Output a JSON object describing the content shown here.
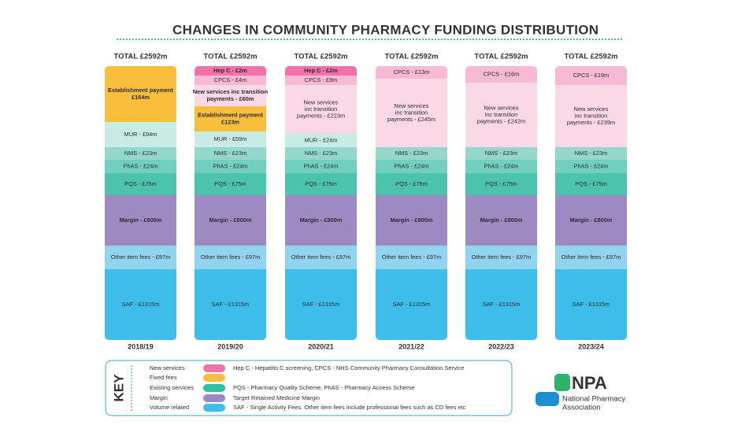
{
  "title": "CHANGES IN COMMUNITY PHARMACY FUNDING DISTRIBUTION",
  "columns": [
    {
      "total": "TOTAL £2592m",
      "year": "2018/19",
      "segments": [
        {
          "lines": [
            "Establishment payment",
            "£164m"
          ],
          "color": "#f9bf3c"
        },
        {
          "lines": [
            "MUR - £94m"
          ],
          "color": "#c8ebe3"
        },
        {
          "lines": [
            "NMS - £23m"
          ],
          "color": "#94d8ca"
        },
        {
          "lines": [
            "PhAS - £24m"
          ],
          "color": "#71cfbd"
        },
        {
          "lines": [
            "PQS - £75m"
          ],
          "color": "#4bc3ad"
        },
        {
          "lines": [
            "Margin - £800m"
          ],
          "color": "#9e8ac3"
        },
        {
          "lines": [
            "Other item fees - £97m"
          ],
          "color": "#90d4ef"
        },
        {
          "lines": [
            "SAF - £1315m"
          ],
          "color": "#3dbeea"
        }
      ]
    },
    {
      "total": "TOTAL £2592m",
      "year": "2019/20",
      "segments": [
        {
          "lines": [
            "Hep C - £2m"
          ],
          "color": "#f172a9"
        },
        {
          "lines": [
            "CPCS - £4m"
          ],
          "color": "#f7b9d3"
        },
        {
          "lines": [
            "New services inc transition",
            "payments - £60m"
          ],
          "color": "#fbd8e6"
        },
        {
          "lines": [
            "Establishment payment",
            "£123m"
          ],
          "color": "#f9bf3c"
        },
        {
          "lines": [
            "MUR - £59m"
          ],
          "color": "#c8ebe3"
        },
        {
          "lines": [
            "NMS - £23m"
          ],
          "color": "#94d8ca"
        },
        {
          "lines": [
            "PhAS - £24m"
          ],
          "color": "#71cfbd"
        },
        {
          "lines": [
            "PQS - £75m"
          ],
          "color": "#4bc3ad"
        },
        {
          "lines": [
            "Margin - £800m"
          ],
          "color": "#9e8ac3"
        },
        {
          "lines": [
            "Other item fees - £97m"
          ],
          "color": "#90d4ef"
        },
        {
          "lines": [
            "SAF - £1315m"
          ],
          "color": "#3dbeea"
        }
      ]
    },
    {
      "total": "TOTAL £2592m",
      "year": "2020/21",
      "segments": [
        {
          "lines": [
            "Hep C - £2m"
          ],
          "color": "#f172a9"
        },
        {
          "lines": [
            "CPCS - £9m"
          ],
          "color": "#f7b9d3"
        },
        {
          "lines": [
            "New services",
            "inc transition",
            "payments - £223m"
          ],
          "color": "#fbd8e6"
        },
        {
          "lines": [
            "MUR - £24m"
          ],
          "color": "#c8ebe3"
        },
        {
          "lines": [
            "NMS - £23m"
          ],
          "color": "#94d8ca"
        },
        {
          "lines": [
            "PhAS - £24m"
          ],
          "color": "#71cfbd"
        },
        {
          "lines": [
            "PQS - £75m"
          ],
          "color": "#4bc3ad"
        },
        {
          "lines": [
            "Margin - £800m"
          ],
          "color": "#9e8ac3"
        },
        {
          "lines": [
            "Other item fees - £97m"
          ],
          "color": "#90d4ef"
        },
        {
          "lines": [
            "SAF - £1315m"
          ],
          "color": "#3dbeea"
        }
      ]
    },
    {
      "total": "TOTAL £2592m",
      "year": "2021/22",
      "segments": [
        {
          "lines": [
            "CPCS - £13m"
          ],
          "color": "#f7b9d3"
        },
        {
          "lines": [
            "New services",
            "inc transition",
            "payments - £245m"
          ],
          "color": "#fbd8e6"
        },
        {
          "lines": [
            "NMS - £23m"
          ],
          "color": "#94d8ca"
        },
        {
          "lines": [
            "PhAS - £24m"
          ],
          "color": "#71cfbd"
        },
        {
          "lines": [
            "PQS - £75m"
          ],
          "color": "#4bc3ad"
        },
        {
          "lines": [
            "Margin - £800m"
          ],
          "color": "#9e8ac3"
        },
        {
          "lines": [
            "Other item fees - £97m"
          ],
          "color": "#90d4ef"
        },
        {
          "lines": [
            "SAF - £1315m"
          ],
          "color": "#3dbeea"
        }
      ]
    },
    {
      "total": "TOTAL £2592m",
      "year": "2022/23",
      "segments": [
        {
          "lines": [
            "CPCS - £16m"
          ],
          "color": "#f7b9d3"
        },
        {
          "lines": [
            "New services",
            "inc transition",
            "payments - £242m"
          ],
          "color": "#fbd8e6"
        },
        {
          "lines": [
            "NMS - £23m"
          ],
          "color": "#94d8ca"
        },
        {
          "lines": [
            "PhAS - £24m"
          ],
          "color": "#71cfbd"
        },
        {
          "lines": [
            "PQS - £75m"
          ],
          "color": "#4bc3ad"
        },
        {
          "lines": [
            "Margin - £800m"
          ],
          "color": "#9e8ac3"
        },
        {
          "lines": [
            "Other item fees - £97m"
          ],
          "color": "#90d4ef"
        },
        {
          "lines": [
            "SAF - £1315m"
          ],
          "color": "#3dbeea"
        }
      ]
    },
    {
      "total": "TOTAL £2592m",
      "year": "2023/24",
      "segments": [
        {
          "lines": [
            "CPCS - £19m"
          ],
          "color": "#f7b9d3"
        },
        {
          "lines": [
            "New services",
            "inc transition",
            "payments - £239m"
          ],
          "color": "#fbd8e6"
        },
        {
          "lines": [
            "NMS - £23m"
          ],
          "color": "#94d8ca"
        },
        {
          "lines": [
            "PhAS - £24m"
          ],
          "color": "#71cfbd"
        },
        {
          "lines": [
            "PQS - £75m"
          ],
          "color": "#4bc3ad"
        },
        {
          "lines": [
            "Margin - £800m"
          ],
          "color": "#9e8ac3"
        },
        {
          "lines": [
            "Other item fees - £97m"
          ],
          "color": "#90d4ef"
        },
        {
          "lines": [
            "SAF - £1315m"
          ],
          "color": "#3dbeea"
        }
      ]
    }
  ],
  "key": {
    "heading": "KEY",
    "items": [
      {
        "label": "New services",
        "color": "#f172a9"
      },
      {
        "label": "Fixed fees",
        "color": "#f9bf3c"
      },
      {
        "label": "Existing services",
        "color": "#2fbfa5"
      },
      {
        "label": "Margin",
        "color": "#9e8ac3"
      },
      {
        "label": "Volume related",
        "color": "#3dbeea"
      }
    ],
    "descriptions": [
      "Hep C - Hepatitis C screening, CPCS - NHS Community Pharmacy Consultation Service",
      "PQS - Pharmacy Quality Scheme, PhAS - Pharmacy Access Scheme",
      "Target Retained Medicine Margin",
      "SAF - Single Activity Fees. Other item fees include professional fees such as CD fees etc"
    ]
  },
  "logo": {
    "name": "NPA",
    "subtitle": [
      "National Pharmacy",
      "Association"
    ]
  }
}
